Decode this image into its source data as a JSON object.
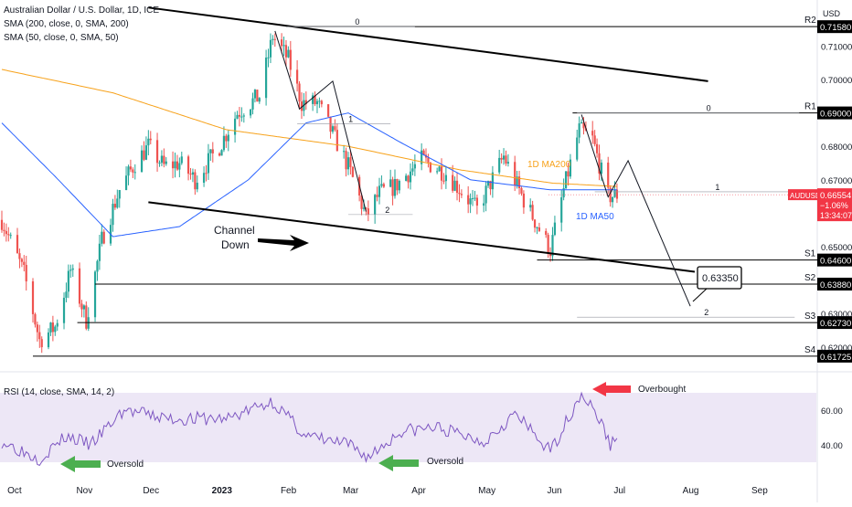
{
  "header": {
    "title": "Australian Dollar / U.S. Dollar, 1D, ICE",
    "indicators": [
      "SMA (200, close, 0, SMA, 200)",
      "SMA (50, close, 0, SMA, 50)"
    ],
    "rsi_label": "RSI (14, close, SMA, 14, 2)"
  },
  "price_axis": {
    "currency": "USD",
    "ticks": [
      {
        "value": 0.71,
        "label": "0.71000"
      },
      {
        "value": 0.7,
        "label": "0.70000"
      },
      {
        "value": 0.68,
        "label": "0.68000"
      },
      {
        "value": 0.67,
        "label": "0.67000"
      },
      {
        "value": 0.65,
        "label": "0.65000"
      },
      {
        "value": 0.63,
        "label": "0.63000"
      },
      {
        "value": 0.62,
        "label": "0.62000"
      }
    ],
    "current_price": {
      "symbol": "AUDUSD",
      "value": "0.66554",
      "change": "−1.06%",
      "countdown": "13:34:07",
      "color": "#f23645"
    }
  },
  "levels": [
    {
      "name": "R2",
      "value": 0.7158,
      "label": "0.71580"
    },
    {
      "name": "R1",
      "value": 0.69,
      "label": "0.69000"
    },
    {
      "name": "S1",
      "value": 0.646,
      "label": "0.64600"
    },
    {
      "name": "S2",
      "value": 0.6388,
      "label": "0.63880"
    },
    {
      "name": "S3",
      "value": 0.6273,
      "label": "0.62730"
    },
    {
      "name": "S4",
      "value": 0.61725,
      "label": "0.61725"
    }
  ],
  "fib_labels": [
    "0",
    "1",
    "2",
    "0",
    "1",
    "2"
  ],
  "annotations": {
    "channel": "Channel\nDown",
    "ma200": "1D MA200",
    "ma50": "1D MA50",
    "target": "0.63350",
    "overbought": "Overbought",
    "oversold": "Oversold"
  },
  "time_axis": {
    "labels": [
      "Oct",
      "Nov",
      "Dec",
      "2023",
      "Feb",
      "Mar",
      "Apr",
      "May",
      "Jun",
      "Jul",
      "Aug",
      "Sep"
    ],
    "bold": "2023"
  },
  "rsi_axis": {
    "ticks": [
      {
        "value": 60,
        "label": "60.00"
      },
      {
        "value": 40,
        "label": "40.00"
      }
    ],
    "band": [
      30,
      70
    ],
    "band_color": "#ede7f6",
    "line_color": "#7e57c2"
  },
  "colors": {
    "up": "#26a69a",
    "down": "#ef5350",
    "sma200": "#f7a21b",
    "sma50": "#2962ff",
    "trendline": "#000000",
    "arrow_red": "#f23645",
    "arrow_green": "#4caf50"
  },
  "chart_data": {
    "type": "candlestick",
    "title": "Australian Dollar / U.S. Dollar, 1D, ICE",
    "x_range": [
      "2022-09-26",
      "2023-09-15"
    ],
    "y_range": [
      0.61,
      0.721
    ],
    "keypoints_close": [
      {
        "date": "2022-09-26",
        "value": 0.658
      },
      {
        "date": "2022-10-06",
        "value": 0.642
      },
      {
        "date": "2022-10-13",
        "value": 0.622
      },
      {
        "date": "2022-10-20",
        "value": 0.626
      },
      {
        "date": "2022-10-27",
        "value": 0.643
      },
      {
        "date": "2022-11-03",
        "value": 0.628
      },
      {
        "date": "2022-11-10",
        "value": 0.652
      },
      {
        "date": "2022-11-18",
        "value": 0.667
      },
      {
        "date": "2022-11-25",
        "value": 0.675
      },
      {
        "date": "2022-12-01",
        "value": 0.68
      },
      {
        "date": "2022-12-08",
        "value": 0.674
      },
      {
        "date": "2022-12-15",
        "value": 0.675
      },
      {
        "date": "2022-12-22",
        "value": 0.67
      },
      {
        "date": "2023-01-02",
        "value": 0.68
      },
      {
        "date": "2023-01-10",
        "value": 0.69
      },
      {
        "date": "2023-01-20",
        "value": 0.695
      },
      {
        "date": "2023-01-26",
        "value": 0.713
      },
      {
        "date": "2023-02-02",
        "value": 0.706
      },
      {
        "date": "2023-02-08",
        "value": 0.693
      },
      {
        "date": "2023-02-15",
        "value": 0.693
      },
      {
        "date": "2023-02-21",
        "value": 0.685
      },
      {
        "date": "2023-03-01",
        "value": 0.674
      },
      {
        "date": "2023-03-09",
        "value": 0.659
      },
      {
        "date": "2023-03-15",
        "value": 0.666
      },
      {
        "date": "2023-03-22",
        "value": 0.668
      },
      {
        "date": "2023-04-03",
        "value": 0.676
      },
      {
        "date": "2023-04-14",
        "value": 0.672
      },
      {
        "date": "2023-04-28",
        "value": 0.661
      },
      {
        "date": "2023-05-10",
        "value": 0.677
      },
      {
        "date": "2023-05-19",
        "value": 0.664
      },
      {
        "date": "2023-05-31",
        "value": 0.649
      },
      {
        "date": "2023-06-06",
        "value": 0.667
      },
      {
        "date": "2023-06-13",
        "value": 0.685
      },
      {
        "date": "2023-06-19",
        "value": 0.682
      },
      {
        "date": "2023-06-26",
        "value": 0.665
      },
      {
        "date": "2023-06-30",
        "value": 0.6655
      }
    ],
    "sma200_keypoints": [
      {
        "date": "2022-09-26",
        "value": 0.703
      },
      {
        "date": "2022-11-15",
        "value": 0.696
      },
      {
        "date": "2023-01-05",
        "value": 0.685
      },
      {
        "date": "2023-03-01",
        "value": 0.68
      },
      {
        "date": "2023-04-20",
        "value": 0.673
      },
      {
        "date": "2023-06-01",
        "value": 0.669
      },
      {
        "date": "2023-06-30",
        "value": 0.668
      }
    ],
    "sma50_keypoints": [
      {
        "date": "2022-09-26",
        "value": 0.687
      },
      {
        "date": "2022-10-20",
        "value": 0.671
      },
      {
        "date": "2022-11-15",
        "value": 0.653
      },
      {
        "date": "2022-12-15",
        "value": 0.656
      },
      {
        "date": "2023-01-15",
        "value": 0.67
      },
      {
        "date": "2023-02-10",
        "value": 0.687
      },
      {
        "date": "2023-03-01",
        "value": 0.69
      },
      {
        "date": "2023-03-25",
        "value": 0.681
      },
      {
        "date": "2023-04-25",
        "value": 0.67
      },
      {
        "date": "2023-05-31",
        "value": 0.667
      },
      {
        "date": "2023-06-30",
        "value": 0.667
      }
    ],
    "rsi_keypoints": [
      {
        "date": "2022-09-26",
        "value": 42
      },
      {
        "date": "2022-10-13",
        "value": 32
      },
      {
        "date": "2022-10-25",
        "value": 45
      },
      {
        "date": "2022-11-05",
        "value": 40
      },
      {
        "date": "2022-11-20",
        "value": 60
      },
      {
        "date": "2022-12-10",
        "value": 55
      },
      {
        "date": "2023-01-05",
        "value": 55
      },
      {
        "date": "2023-01-26",
        "value": 65
      },
      {
        "date": "2023-02-10",
        "value": 45
      },
      {
        "date": "2023-03-01",
        "value": 40
      },
      {
        "date": "2023-03-10",
        "value": 33
      },
      {
        "date": "2023-03-25",
        "value": 48
      },
      {
        "date": "2023-04-10",
        "value": 50
      },
      {
        "date": "2023-05-01",
        "value": 42
      },
      {
        "date": "2023-05-15",
        "value": 58
      },
      {
        "date": "2023-05-31",
        "value": 36
      },
      {
        "date": "2023-06-14",
        "value": 70
      },
      {
        "date": "2023-06-22",
        "value": 55
      },
      {
        "date": "2023-06-27",
        "value": 40
      },
      {
        "date": "2023-06-30",
        "value": 45
      }
    ]
  }
}
